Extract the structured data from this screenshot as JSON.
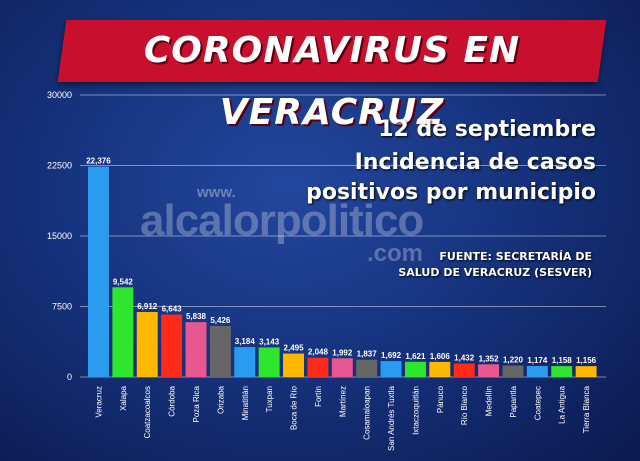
{
  "banner": {
    "title": "CORONAVIRUS EN VERACRUZ"
  },
  "info": {
    "date": "12 de septiembre",
    "subtitle_line1": "Incidencia de casos",
    "subtitle_line2": "positivos por municipio",
    "source_line1": "FUENTE: SECRETARÍA DE",
    "source_line2": "SALUD DE VERACRUZ (SESVER)"
  },
  "watermark": {
    "www": "www.",
    "main": "alcalorpolitico",
    "com": ".com"
  },
  "chart_data": {
    "type": "bar",
    "categories": [
      "Veracruz",
      "Xalapa",
      "Coatzacoalcos",
      "Córdoba",
      "Poza Rica",
      "Orizaba",
      "Minatitlán",
      "Tuxpan",
      "Boca de Río",
      "Fortín",
      "Martínez",
      "Cosamaloapan",
      "San Andrés Tuxtla",
      "Ixtaczoquitlán",
      "Pánuco",
      "Río Blanco",
      "Medellín",
      "Papantla",
      "Coatepec",
      "La Antigua",
      "Tierra Blanca"
    ],
    "values": [
      22376,
      9542,
      6912,
      6643,
      5838,
      5426,
      3184,
      3143,
      2495,
      2048,
      1992,
      1837,
      1692,
      1621,
      1606,
      1432,
      1352,
      1220,
      1174,
      1158,
      1156
    ],
    "value_labels": [
      "22,376",
      "9,542",
      "6,912",
      "6,643",
      "5,838",
      "5,426",
      "3,184",
      "3,143",
      "2,495",
      "2,048",
      "1,992",
      "1,837",
      "1,692",
      "1,621",
      "1,606",
      "1,432",
      "1,352",
      "1,220",
      "1,174",
      "1,158",
      "1,156"
    ],
    "colors": [
      "#2b9bf0",
      "#2ee62e",
      "#ffb800",
      "#ff2a1a",
      "#e8578f",
      "#666666",
      "#2b9bf0",
      "#2ee62e",
      "#ffb800",
      "#ff2a1a",
      "#e8578f",
      "#666666",
      "#2b9bf0",
      "#2ee62e",
      "#ffb800",
      "#ff2a1a",
      "#e8578f",
      "#666666",
      "#2b9bf0",
      "#2ee62e",
      "#ffb800"
    ],
    "yticks": [
      0,
      7500,
      15000,
      22500,
      30000
    ],
    "ytick_labels": [
      "0",
      "7500",
      "15000",
      "22500",
      "30000"
    ],
    "ylim": [
      0,
      30000
    ],
    "grid": true,
    "legend": "none"
  }
}
